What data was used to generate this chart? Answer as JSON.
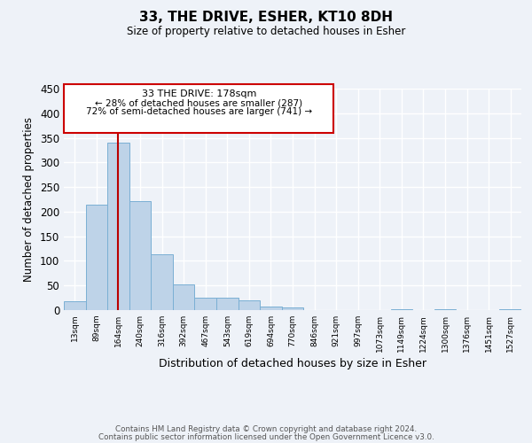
{
  "title": "33, THE DRIVE, ESHER, KT10 8DH",
  "subtitle": "Size of property relative to detached houses in Esher",
  "xlabel": "Distribution of detached houses by size in Esher",
  "ylabel": "Number of detached properties",
  "bar_values": [
    18,
    215,
    340,
    222,
    113,
    53,
    26,
    25,
    20,
    8,
    5,
    0,
    0,
    0,
    0,
    2,
    0,
    2,
    0,
    0,
    2
  ],
  "bar_labels": [
    "13sqm",
    "89sqm",
    "164sqm",
    "240sqm",
    "316sqm",
    "392sqm",
    "467sqm",
    "543sqm",
    "619sqm",
    "694sqm",
    "770sqm",
    "846sqm",
    "921sqm",
    "997sqm",
    "1073sqm",
    "1149sqm",
    "1224sqm",
    "1300sqm",
    "1376sqm",
    "1451sqm",
    "1527sqm"
  ],
  "bar_color": "#bed3e8",
  "bar_edge_color": "#7aafd4",
  "bar_width": 1.0,
  "ylim": [
    0,
    450
  ],
  "yticks": [
    0,
    50,
    100,
    150,
    200,
    250,
    300,
    350,
    400,
    450
  ],
  "vline_x_idx": 2,
  "vline_color": "#bb0000",
  "annotation_title": "33 THE DRIVE: 178sqm",
  "annotation_line1": "← 28% of detached houses are smaller (287)",
  "annotation_line2": "72% of semi-detached houses are larger (741) →",
  "annotation_box_color": "#cc0000",
  "footer_line1": "Contains HM Land Registry data © Crown copyright and database right 2024.",
  "footer_line2": "Contains public sector information licensed under the Open Government Licence v3.0.",
  "background_color": "#eef2f8",
  "grid_color": "#ffffff"
}
